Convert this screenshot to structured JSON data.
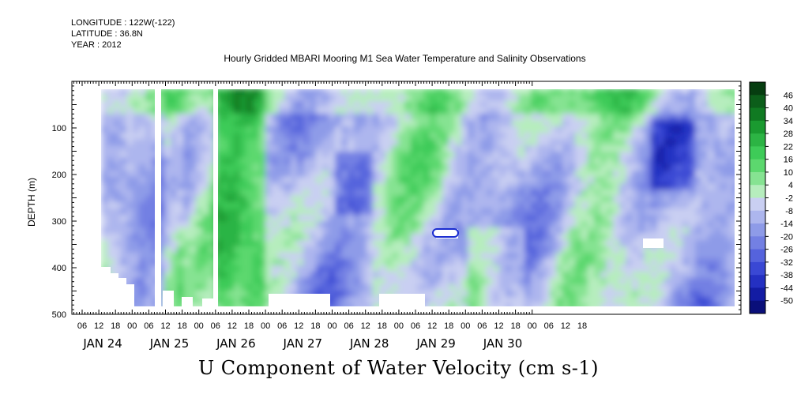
{
  "header": {
    "longitude": "LONGITUDE : 122W(-122)",
    "latitude": "LATITUDE : 36.8N",
    "year": "YEAR : 2012"
  },
  "chart_data": {
    "type": "heatmap",
    "title": "Hourly Gridded MBARI Mooring M1 Sea Water Temperature and Salinity Observations",
    "variable_title": "U Component of Water Velocity (cm s-1)",
    "ylabel": "DEPTH (m)",
    "ylim": [
      500,
      0
    ],
    "y_ticks": [
      100,
      200,
      300,
      400,
      500
    ],
    "x_hour_ticks": [
      "06",
      "12",
      "18",
      "00",
      "06",
      "12",
      "18",
      "00",
      "06",
      "12",
      "18",
      "00",
      "06",
      "12",
      "18",
      "00",
      "06",
      "12",
      "18",
      "00",
      "06",
      "12",
      "18",
      "00",
      "06",
      "12",
      "18",
      "00",
      "06",
      "12",
      "18"
    ],
    "day_labels": [
      "JAN 24",
      "JAN 25",
      "JAN 26",
      "JAN 27",
      "JAN 28",
      "JAN 29",
      "JAN 30"
    ],
    "colorbar_levels": [
      "46",
      "40",
      "34",
      "28",
      "22",
      "16",
      "10",
      "4",
      "-2",
      "-8",
      "-14",
      "-20",
      "-26",
      "-32",
      "-38",
      "-44",
      "-50"
    ],
    "colorbar_colors": [
      "#063d10",
      "#0c5e1a",
      "#107a22",
      "#1a9a30",
      "#2cb444",
      "#3ecb58",
      "#5cd86e",
      "#86e392",
      "#b6edbd",
      "#c9cff2",
      "#adb6ee",
      "#8e9be8",
      "#7380e3",
      "#5563dd",
      "#3a48d4",
      "#2430c2",
      "#131ca4",
      "#0a0f7a"
    ]
  }
}
